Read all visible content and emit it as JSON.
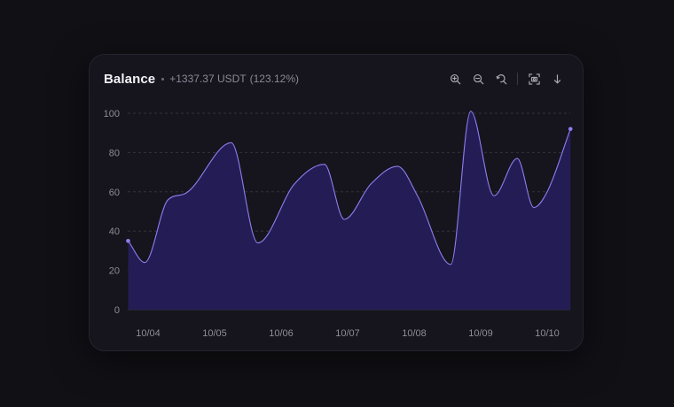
{
  "header": {
    "title": "Balance",
    "change_value": "+1337.37 USDT",
    "change_pct": "(123.12%)"
  },
  "toolbar": {
    "icons": [
      "zoom-in-icon",
      "zoom-out-icon",
      "zoom-reset-icon",
      "screenshot-icon",
      "download-icon"
    ]
  },
  "colors": {
    "background": "#111015",
    "card": "#16141d",
    "area_fill": "#241d55",
    "line": "#8d7ff0",
    "marker": "#8d7ff0",
    "grid": "#34323d"
  },
  "chart_data": {
    "type": "area",
    "title": "Balance",
    "xlabel": "",
    "ylabel": "",
    "ylim": [
      0,
      100
    ],
    "yticks": [
      0,
      20,
      40,
      60,
      80,
      100
    ],
    "xticks": [
      "10/04",
      "10/05",
      "10/06",
      "10/07",
      "10/08",
      "10/09",
      "10/10"
    ],
    "grid": "horizontal-dashed",
    "legend": "none",
    "series": [
      {
        "x": [
          -0.3,
          -0.05,
          0.3,
          0.55,
          1.25,
          1.65,
          2.2,
          2.65,
          2.95,
          3.35,
          3.75,
          4.05,
          4.55,
          4.85,
          5.2,
          5.55,
          5.8,
          6.0,
          6.35
        ],
        "y": [
          35,
          24,
          56,
          59,
          85,
          34,
          64,
          74,
          46,
          64,
          73,
          58,
          23,
          101,
          58,
          77,
          52,
          60,
          92
        ]
      }
    ]
  }
}
